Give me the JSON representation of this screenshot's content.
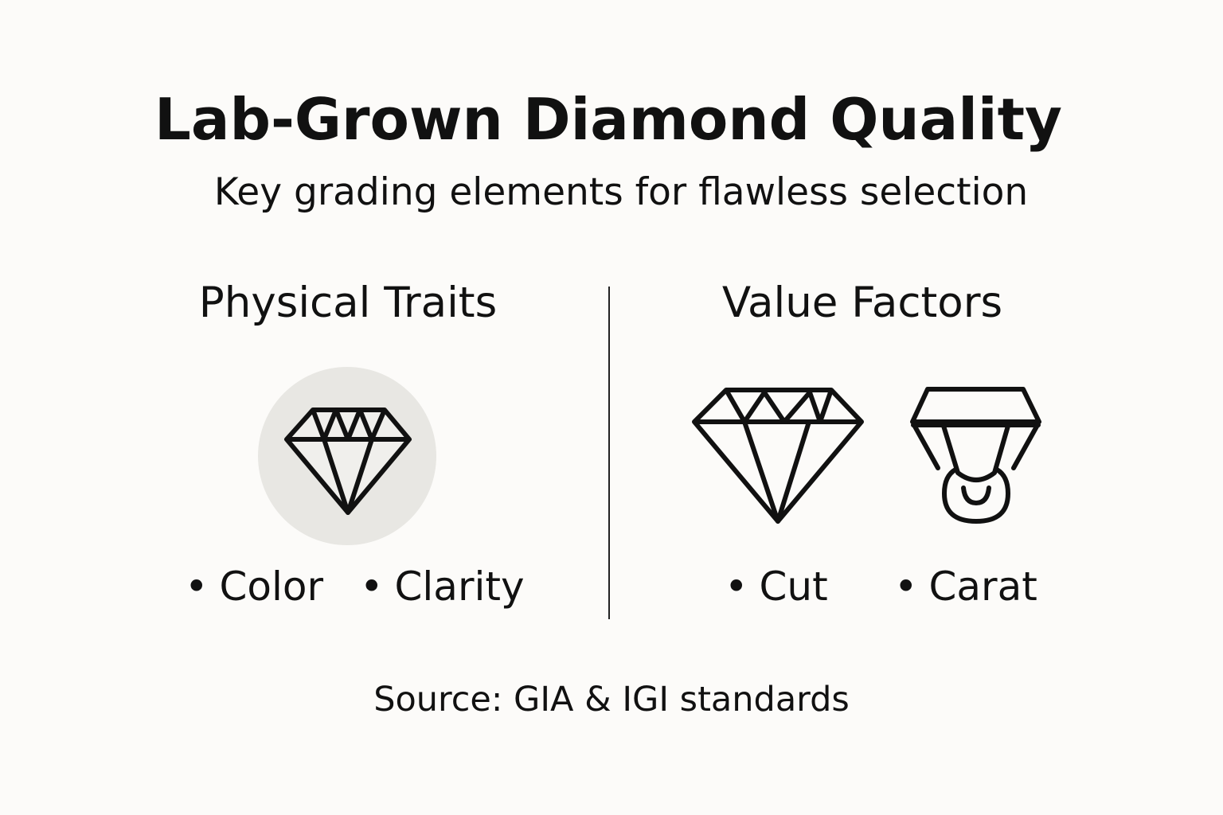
{
  "title": "Lab-Grown Diamond Quality",
  "subtitle": "Key grading elements for flawless selection",
  "sections": [
    {
      "heading": "Physical Traits",
      "icon": "diamond-icon",
      "items": [
        "Color",
        "Clarity"
      ]
    },
    {
      "heading": "Value Factors",
      "icons": [
        "diamond-cut-icon",
        "carat-weight-icon"
      ],
      "items": [
        "Cut",
        "Carat"
      ]
    }
  ],
  "bullet": "•",
  "source": "Source: GIA & IGI standards",
  "colors": {
    "background": "#fcfbf9",
    "circle": "#e8e7e3",
    "ink": "#111111"
  }
}
